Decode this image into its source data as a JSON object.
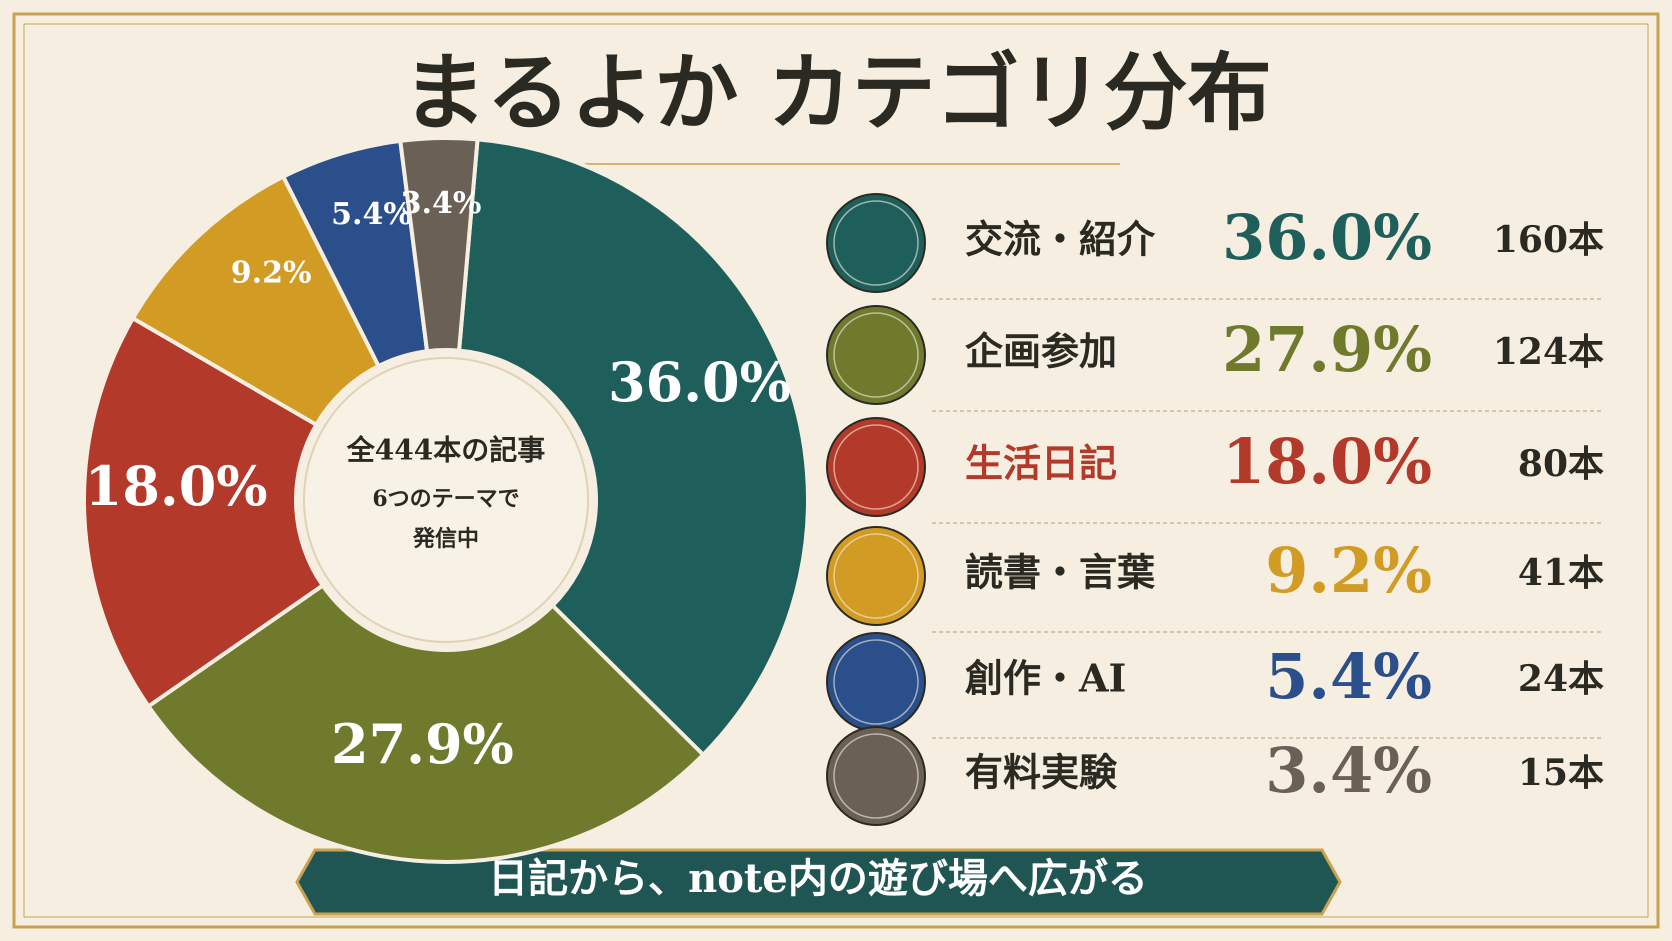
{
  "chart_data": {
    "type": "pie",
    "donut": true,
    "title": "まるよか カテゴリ分布",
    "categories": [
      "交流・紹介",
      "企画参加",
      "生活日記",
      "読書・言葉",
      "創作・AI",
      "有料実験"
    ],
    "values": [
      36.0,
      27.9,
      18.0,
      9.2,
      5.4,
      3.4
    ],
    "value_labels": [
      "36.0%",
      "27.9%",
      "18.0%",
      "9.2%",
      "5.4%",
      "3.4%"
    ],
    "colors": [
      "#1f5f5b",
      "#6f7a2c",
      "#b3392a",
      "#d29b23",
      "#2a4f8b",
      "#6b6056"
    ],
    "count_labels": [
      "160本",
      "124本",
      "80本",
      "41本",
      "24本",
      "15本"
    ],
    "center_text": [
      "全444本の記事",
      "6つのテーマで",
      "発信中"
    ],
    "footer": "日記から、note内の遊び場へ広がる"
  }
}
